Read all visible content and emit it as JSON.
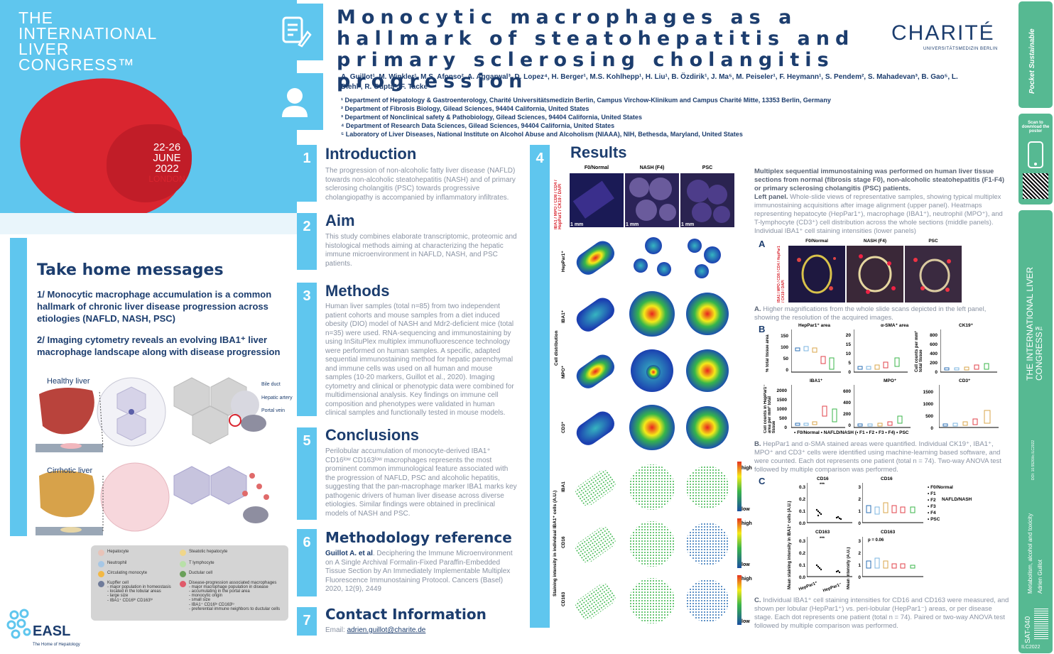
{
  "congress": {
    "line1": "THE",
    "line2": "INTERNATIONAL",
    "line3": "LIVER",
    "line4": "CONGRESS™",
    "date1": "22-26",
    "date2": "JUNE",
    "date3": "2022",
    "city": "LONDON"
  },
  "take_home": {
    "title": "Take home messages",
    "msg1": "1/ Monocytic macrophage accumulation is a common hallmark of chronic liver disease progression across etiologies (NAFLD, NASH, PSC)",
    "msg2": "2/ Imaging cytometry reveals an evolving IBA1⁺ liver macrophage landscape along with disease progression"
  },
  "diagram": {
    "healthy": "Healthy liver",
    "cirrhotic": "Cirrhotic liver",
    "bile_duct": "Bile duct",
    "hepatic_artery": "Hepatic artery",
    "portal_vein": "Portal vein"
  },
  "legend": {
    "hepatocyte": "Hepatocyte",
    "steatotic": "Steatotic hepatocyte",
    "neutrophil": "Neutrophil",
    "tlymph": "T lymphocyte",
    "circ_mono": "Circulating monocyte",
    "ductular": "Ductular cell",
    "kupffer": "Kupffer cell",
    "kupffer_d": "- major population in homeostasis\n- located in the lobular areas\n- large size\n- IBA1⁺ CD16ʰⁱ CD163ʰⁱ",
    "dpam": "Disease-progression associated macrophages",
    "dpam_d": "- major macrophage population in disease\n- accumulating in the portal area\n- monocytic origin\n- small size\n- IBA1⁺ CD16ˡᵒ CD163ˡᵒ\n- preferential immune neighbors to ductular cells"
  },
  "easl": {
    "name": "EASL",
    "tag": "The Home of Hepatology"
  },
  "title": "Monocytic macrophages as a hallmark of steatohepatitis and primary sclerosing cholangitis progression",
  "charite": {
    "name": "CHARITÉ",
    "sub": "UNIVERSITÄTSMEDIZIN BERLIN"
  },
  "authors": "A. Guillot¹, M. Winkler¹, M.S. Afonso², A. Aggarwal³, D. Lopez⁴, H. Berger¹, M.S. Kohlhepp¹, H. Liu¹, B. Özdirik¹, J. Ma⁵, M. Peiseler¹, F. Heymann¹, S. Pendem², S. Mahadevan³, B. Gao⁵, L. Diehl³, R. Gupta², F. Tacke¹",
  "affiliations": [
    "¹ Department of Hepatology & Gastroenterology, Charité Universitätsmedizin Berlin, Campus Virchow-Klinikum and Campus Charité Mitte, 13353 Berlin, Germany",
    "² Department of Fibrosis Biology, Gilead Sciences, 94404 California, United States",
    "³ Department of Nonclinical safety & Pathobiology, Gilead Sciences, 94404 California, United States",
    "⁴ Department of Research Data Sciences, Gilead Sciences, 94404 California, United States",
    "⁵ Laboratory of Liver Diseases, National Institute on Alcohol Abuse and Alcoholism (NIAAA), NIH, Bethesda, Maryland, United States"
  ],
  "sections": {
    "intro": {
      "num": "1",
      "title": "Introduction",
      "body": "The progression of non-alcoholic fatty liver disease (NAFLD) towards non-alcoholic steatohepatitis (NASH) and of primary sclerosing cholangitis (PSC) towards progressive cholangiopathy is accompanied by inflammatory infiltrates."
    },
    "aim": {
      "num": "2",
      "title": "Aim",
      "body": "This study combines elaborate transcriptomic, proteomic and histological methods aiming at characterizing the hepatic immune microenvironment in NAFLD, NASH, and PSC patients."
    },
    "methods": {
      "num": "3",
      "title": "Methods",
      "body": "Human liver samples (total n=85) from two independent patient cohorts and mouse samples from a diet induced obesity (DIO) model of NASH and Mdr2-deficient mice (total n=35) were used. RNA-sequencing and immunostaining by using InSituPlex multiplex immunofluorescence technology were performed on human samples. A specific, adapted sequential immunostaining method for hepatic parenchymal and immune cells was used on all human and mouse samples (10-20 markers, Guillot et al., 2020). Imaging cytometry and clinical or phenotypic data were combined for multidimensional analysis. Key findings on immune cell composition and phenotypes were validated in human clinical samples and functionally tested in mouse models."
    },
    "conclusions": {
      "num": "5",
      "title": "Conclusions",
      "body": "Perilobular accumulation of monocyte-derived IBA1⁺ CD16ˡᵒʷ CD163ˡᵒʷ macrophages represents the most prominent common immunological feature associated with the progression of NAFLD, PSC and alcoholic hepatitis, suggesting that the pan-macrophage marker IBA1 marks key pathogenic drivers of human liver disease across diverse etiologies. Similar findings were obtained in preclinical models of NASH and PSC."
    },
    "methref": {
      "num": "6",
      "title": "Methodology reference",
      "author": "Guillot A. et al",
      "body": ". Deciphering the Immune Microenvironment on A Single Archival Formalin-Fixed Paraffin-Embedded Tissue Section by An Immediately Implementable Multiplex Fluorescence Immunostaining Protocol. Cancers (Basel) 2020, 12(9), 2449"
    },
    "contact": {
      "num": "7",
      "title": "Contact Information",
      "label": "Email: ",
      "email": "adrien.guillot@charite.de"
    }
  },
  "results": {
    "num": "4",
    "title": "Results",
    "col1": "F0/Normal",
    "col2": "NASH (F4)",
    "col3": "PSC",
    "stain_label": "IBA1 / MPO / CD8 / CD4 / HepPar1 / CK19 / DAPI",
    "scale": "1 mm",
    "row_hep": "HepPar1⁺",
    "row_iba": "IBA1⁺",
    "row_mpo": "MPO⁺",
    "row_cd3": "CD3⁺",
    "cell_dist": "Cell distribution",
    "row_iba1": "IBA1",
    "row_cd16": "CD16",
    "row_cd163": "CD163",
    "stain_int": "Staining intensity in individual IBA1⁺ cells (A.U.)",
    "high": "high",
    "low": "low",
    "desc_title": "Multiplex sequential immunostaining was performed on human liver tissue sections from normal (fibrosis stage F0), non-alcoholic steatohepatitis (F1-F4) or primary sclerosing cholangitis (PSC) patients.",
    "left_panel_label": "Left panel.",
    "left_panel": " Whole-slide views of representative samples, showing typical multiplex immunostaining acquisitions after image alignment (upper panel). Heatmaps representing hepatocyte (HepPar1⁺), macrophage (IBA1⁺), neutrophil (MPO⁺), and T-lymphocyte (CD3⁺) cell distribution across the whole sections (middle panels). Individual IBA1⁺ cell staining intensities (lower panels)",
    "A_letter": "A",
    "A_desc_label": "A.",
    "A_desc": " Higher magnifications from the whole slide scans depicted in the left panel, showing the resolution of the acquired images.",
    "B_letter": "B",
    "B_desc_label": "B.",
    "B_desc": " HepPar1 and α-SMA stained areas were quantified. Individual CK19⁺, IBA1⁺, MPO⁺ and CD3⁺ cells were identified using machine-learning based software, and were counted. Each dot represents one patient (total n = 74). Two-way ANOVA test followed by multiple comparison was performed.",
    "C_letter": "C",
    "C_desc_label": "C.",
    "C_desc": " Individual IBA1⁺ cell staining intensities for CD16 and CD163 were measured, and shown per lobular (HepPar1⁺) vs. peri-lobular (HepPar1⁻) areas, or per disease stage. Each dot represents one patient (total n = 74). Paired or two-way ANOVA test followed by multiple comparison was performed.",
    "B_charts": [
      {
        "title": "HepPar1⁺ area",
        "ylabel": "% total tissue area",
        "ticks": [
          "150",
          "100",
          "50",
          "0"
        ]
      },
      {
        "title": "α-SMA⁺ area",
        "ylabel": "",
        "ticks": [
          "20",
          "15",
          "10",
          "5",
          "0"
        ]
      },
      {
        "title": "CK19⁺",
        "ylabel": "Cell counts per mm² total tissue",
        "ticks": [
          "800",
          "600",
          "400",
          "200",
          "0"
        ]
      },
      {
        "title": "IBA1⁺",
        "ylabel": "Cell counts in HepPar1⁻ area per mm² total tissue",
        "ticks": [
          "2000",
          "1500",
          "1000",
          "500",
          "0"
        ]
      },
      {
        "title": "MPO⁺",
        "ylabel": "",
        "ticks": [
          "600",
          "400",
          "200",
          "0"
        ]
      },
      {
        "title": "CD3⁺",
        "ylabel": "",
        "ticks": [
          "1500",
          "1000",
          "500",
          "0"
        ]
      }
    ],
    "B_legend": "• F0/Normal  • NAFLD/NASH (• F1 • F2 • F3 • F4)  • PSC",
    "C_charts": {
      "cd16": "CD16",
      "cd163": "CD163",
      "ylabel_left": "Mean staining intensity in IBA1⁺ cells (A.U.)",
      "ylabel_right": "Mean intensity (A.U.)",
      "x1": "HepPar1⁺",
      "x2": "HepPar1⁻",
      "pval": "p = 0.06",
      "stars": "***",
      "lt": [
        "0.3",
        "0.2",
        "0.1",
        "0.0"
      ],
      "rt": [
        "3",
        "2",
        "1",
        "0"
      ]
    },
    "C_legend": [
      "• F0/Normal",
      "• F1",
      "• F2",
      "• F3",
      "• F4",
      "• PSC"
    ],
    "C_legend_group": "NAFLD/NASH"
  },
  "strip": {
    "pocket": "Pocket Sustainable",
    "scan": "Scan to download the poster",
    "ilc": "THE INTERNATIONAL LIVER CONGRESS™",
    "doi": "DOI: 10.5526/ilc.ILC2022",
    "topic": "Metabolism, alcohol and toxicity",
    "author": "Adrien Guillot",
    "code": "SAT-040",
    "year": "ILC2022"
  },
  "colors": {
    "navy": "#1c3d6e",
    "sky": "#5fc6ee",
    "green": "#56b992",
    "red": "#d9252f"
  }
}
